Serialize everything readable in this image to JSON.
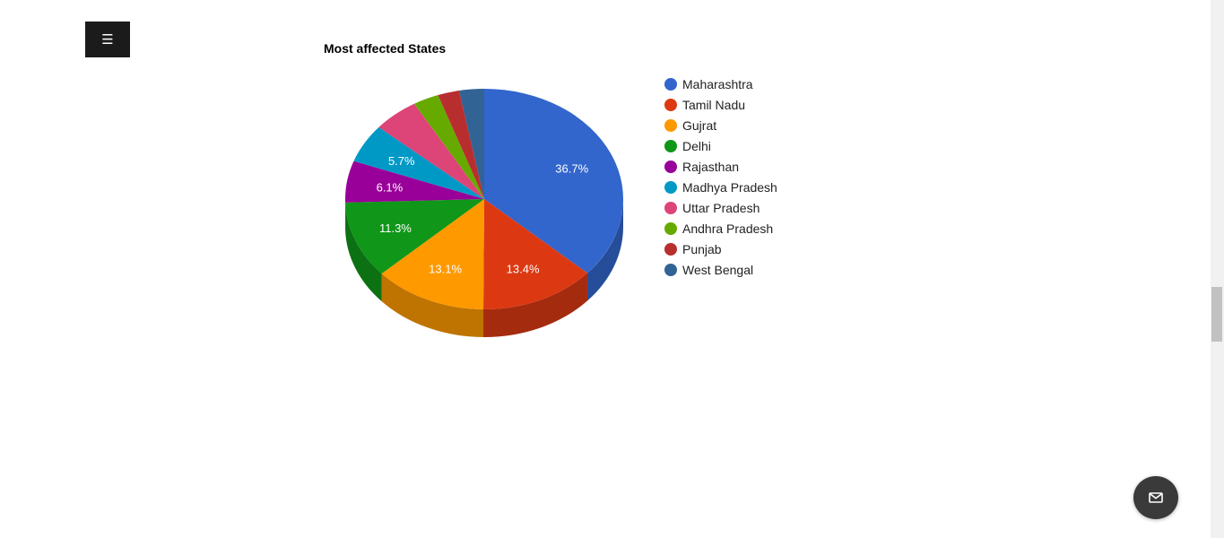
{
  "menu": {
    "icon": "hamburger-icon",
    "glyph": "☰"
  },
  "contact": {
    "icon": "mail-icon"
  },
  "chart_data": {
    "type": "pie",
    "title": "Most affected States",
    "is3D": true,
    "legend_position": "right",
    "slices": [
      {
        "label": "Maharashtra",
        "percent": 36.7,
        "value_label": "36.7%",
        "color": "#3366cc"
      },
      {
        "label": "Tamil Nadu",
        "percent": 13.4,
        "value_label": "13.4%",
        "color": "#dc3912"
      },
      {
        "label": "Gujrat",
        "percent": 13.1,
        "value_label": "13.1%",
        "color": "#ff9900"
      },
      {
        "label": "Delhi",
        "percent": 11.3,
        "value_label": "11.3%",
        "color": "#109618"
      },
      {
        "label": "Rajasthan",
        "percent": 6.1,
        "value_label": "6.1%",
        "color": "#990099"
      },
      {
        "label": "Madhya Pradesh",
        "percent": 5.7,
        "value_label": "5.7%",
        "color": "#0099c6"
      },
      {
        "label": "Uttar Pradesh",
        "percent": 5.3,
        "value_label": "",
        "color": "#dd4477"
      },
      {
        "label": "Andhra Pradesh",
        "percent": 3.0,
        "value_label": "",
        "color": "#66aa00"
      },
      {
        "label": "Punjab",
        "percent": 2.5,
        "value_label": "",
        "color": "#b82e2e"
      },
      {
        "label": "West Bengal",
        "percent": 2.9,
        "value_label": "",
        "color": "#316395"
      }
    ]
  }
}
